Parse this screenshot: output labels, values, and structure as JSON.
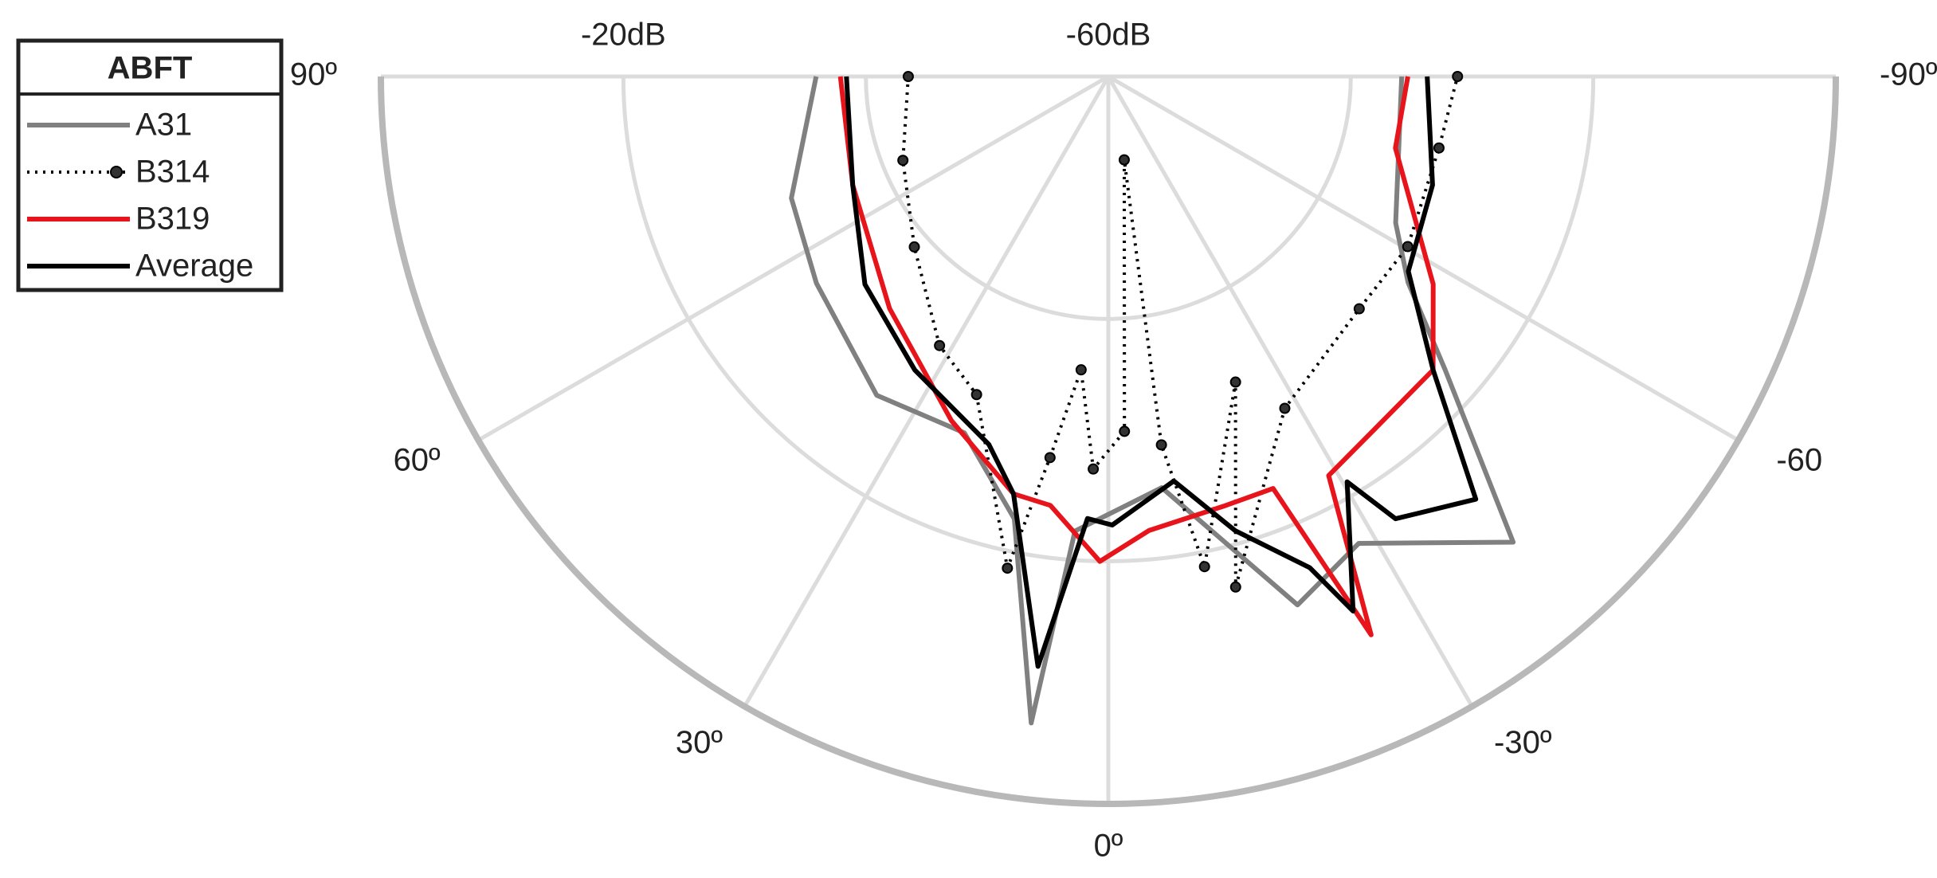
{
  "chart_data": {
    "type": "polar",
    "legend_title": "ABFT",
    "legend": "upper left",
    "theta_direction": "clockwise-from-bottom",
    "thetalim": [
      90,
      -90
    ],
    "thetaticks": [
      {
        "value": 90,
        "label": "90º"
      },
      {
        "value": 60,
        "label": "60º"
      },
      {
        "value": 30,
        "label": "30º"
      },
      {
        "value": 0,
        "label": "0º"
      },
      {
        "value": -30,
        "label": "-30º"
      },
      {
        "value": -60,
        "label": "-60"
      },
      {
        "value": -90,
        "label": "-90º"
      }
    ],
    "rlim": [
      -60,
      0
    ],
    "rticks": [
      {
        "value": -60,
        "label": "-60dB"
      },
      {
        "value": -40,
        "label": null
      },
      {
        "value": -20,
        "label": "-20dB"
      },
      {
        "value": 0,
        "label": null
      }
    ],
    "grid": true,
    "series": [
      {
        "name": "A31",
        "color": "#808080",
        "linestyle": "solid",
        "marker": null,
        "theta": [
          90,
          69,
          54.7,
          36,
          22,
          12,
          6.8,
          4.2,
          -7.4,
          -19.7,
          -28.2,
          -41,
          -48.9,
          -55.5,
          -63,
          -90
        ],
        "values": [
          -35.9,
          -32,
          -30.5,
          -27.5,
          -28.3,
          -22.7,
          -6.3,
          -22.4,
          -25.8,
          -13.7,
          -16.3,
          -9.1,
          -23.1,
          -30,
          -33.4,
          -35.8
        ]
      },
      {
        "name": "B314",
        "color": "#000000",
        "linestyle": "dotted",
        "marker": "o",
        "theta": [
          90,
          67.8,
          48.7,
          32.1,
          22.5,
          11.6,
          8.7,
          5.3,
          2.2,
          -2.6,
          -10.8,
          -8.2,
          -11.1,
          -22.6,
          -14,
          -28,
          -47.2,
          -60.4,
          -77.8,
          -90
        ],
        "values": [
          -43.5,
          -41.7,
          -38.7,
          -33.8,
          -31.6,
          -18.6,
          -28.2,
          -35.7,
          -27.6,
          -30.7,
          -53,
          -29.3,
          -18.8,
          -32.7,
          -16.6,
          -29,
          -31.8,
          -31.6,
          -32.1,
          -31.2
        ]
      },
      {
        "name": "B319",
        "color": "#e8141c",
        "linestyle": "solid",
        "marker": null,
        "theta": [
          90,
          67,
          43.3,
          24.5,
          12.8,
          7.7,
          1,
          -5.1,
          -15,
          -21.8,
          -25.2,
          -28.9,
          -36.5,
          -47.9,
          -57.4,
          -76,
          -90
        ],
        "values": [
          -37.9,
          -37.1,
          -33.7,
          -28.8,
          -24.7,
          -24.3,
          -20,
          -22.4,
          -23.3,
          -23.4,
          -9.1,
          -22.4,
          -23.5,
          -23.9,
          -28.2,
          -35.6,
          -35.3
        ]
      },
      {
        "name": "Average",
        "color": "#000000",
        "linestyle": "solid",
        "marker": null,
        "theta": [
          90,
          67,
          49.5,
          33.4,
          18,
          12.8,
          6.8,
          2.7,
          -0.5,
          -9.2,
          -15.6,
          -22.3,
          -24.6,
          -30.5,
          -33,
          -41,
          -47.9,
          -57,
          -71.5,
          -90
        ],
        "values": [
          -38.4,
          -37.1,
          -33.6,
          -31,
          -28.1,
          -24.7,
          -11,
          -23.5,
          -23,
          -26.2,
          -21.1,
          -16.2,
          -11.5,
          -21.2,
          -16.5,
          -13.8,
          -23.9,
          -30.5,
          -31.8,
          -33.7
        ]
      }
    ]
  }
}
